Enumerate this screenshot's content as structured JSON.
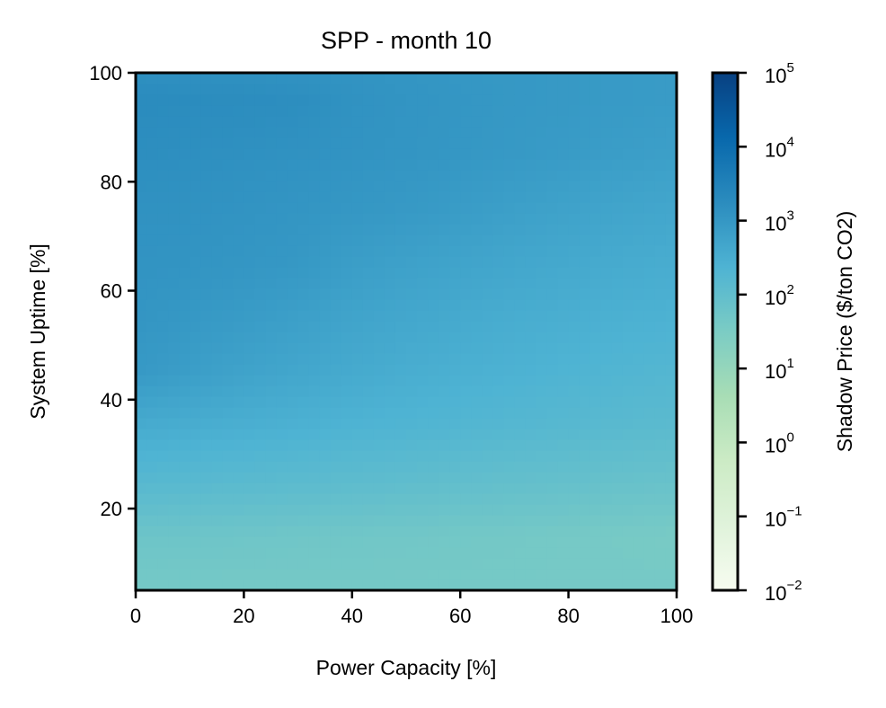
{
  "chart_data": {
    "type": "heatmap",
    "title": "SPP - month 10",
    "xlabel": "Power Capacity [%]",
    "ylabel": "System Uptime [%]",
    "xlim": [
      0,
      100
    ],
    "ylim": [
      5,
      100
    ],
    "x_ticks": [
      0,
      20,
      40,
      60,
      80,
      100
    ],
    "y_ticks": [
      20,
      40,
      60,
      80,
      100
    ],
    "colorbar": {
      "label": "Shadow Price ($/ton CO2)",
      "scale": "log",
      "range": [
        0.01,
        100000
      ],
      "tick_values": [
        0.01,
        0.1,
        1,
        10,
        100,
        1000,
        10000,
        100000
      ],
      "tick_labels": [
        {
          "base": "10",
          "exp": "−2"
        },
        {
          "base": "10",
          "exp": "−1"
        },
        {
          "base": "10",
          "exp": "0"
        },
        {
          "base": "10",
          "exp": "1"
        },
        {
          "base": "10",
          "exp": "2"
        },
        {
          "base": "10",
          "exp": "3"
        },
        {
          "base": "10",
          "exp": "4"
        },
        {
          "base": "10",
          "exp": "5"
        }
      ],
      "colormap": "GnBu"
    },
    "x": [
      0,
      10,
      20,
      30,
      40,
      50,
      60,
      70,
      80,
      90,
      100
    ],
    "y": [
      5,
      15,
      25,
      35,
      45,
      55,
      65,
      75,
      85,
      95,
      100
    ],
    "z": [
      [
        40,
        40,
        40,
        40,
        40,
        40,
        40,
        40,
        40,
        40,
        40
      ],
      [
        60,
        58,
        55,
        52,
        50,
        48,
        45,
        43,
        40,
        38,
        36
      ],
      [
        160,
        150,
        140,
        130,
        120,
        110,
        100,
        92,
        85,
        78,
        72
      ],
      [
        350,
        320,
        290,
        260,
        230,
        210,
        190,
        170,
        155,
        140,
        130
      ],
      [
        900,
        700,
        550,
        450,
        380,
        320,
        280,
        250,
        220,
        200,
        180
      ],
      [
        1100,
        950,
        800,
        650,
        520,
        440,
        380,
        330,
        300,
        270,
        250
      ],
      [
        1200,
        1150,
        1050,
        950,
        720,
        600,
        520,
        450,
        400,
        360,
        330
      ],
      [
        1300,
        1300,
        1200,
        1100,
        1000,
        900,
        780,
        650,
        560,
        500,
        450
      ],
      [
        1600,
        1500,
        1400,
        1300,
        1200,
        1100,
        1000,
        900,
        800,
        720,
        650
      ],
      [
        1800,
        1750,
        1700,
        1600,
        1300,
        1150,
        1050,
        950,
        900,
        850,
        800
      ],
      [
        1500,
        1450,
        1400,
        1300,
        1200,
        1100,
        1000,
        950,
        900,
        850,
        800
      ]
    ]
  }
}
